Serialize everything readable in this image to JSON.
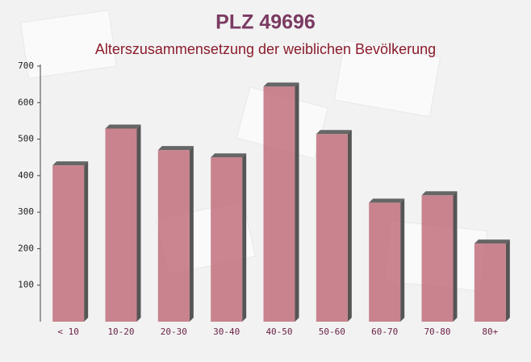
{
  "chart_data": {
    "type": "bar",
    "title": "PLZ 49696",
    "subtitle": "Alterszusammensetzung der weiblichen Bevölkerung",
    "categories": [
      "< 10",
      "10-20",
      "20-30",
      "30-40",
      "40-50",
      "50-60",
      "60-70",
      "70-80",
      "80+"
    ],
    "values": [
      428,
      529,
      470,
      450,
      644,
      514,
      326,
      346,
      214
    ],
    "color": "#c1707c",
    "ylim": [
      0,
      700
    ],
    "yticks": [
      100,
      200,
      300,
      400,
      500,
      600,
      700
    ]
  }
}
